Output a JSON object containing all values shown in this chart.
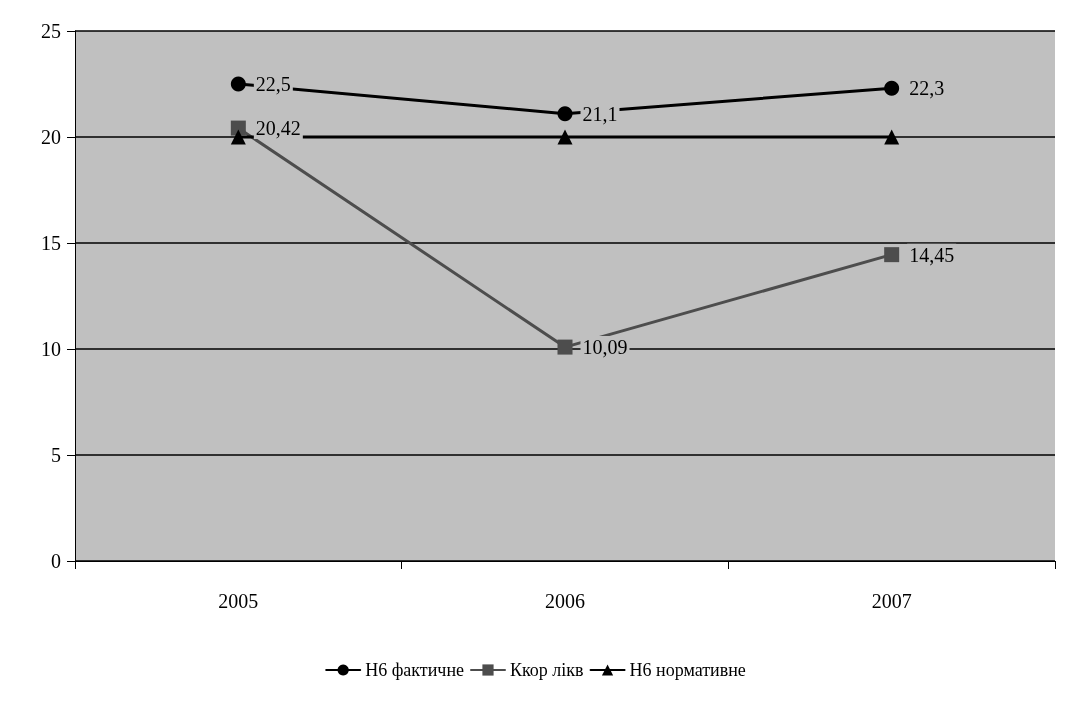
{
  "chart_data": {
    "type": "line",
    "categories": [
      "2005",
      "2006",
      "2007"
    ],
    "series": [
      {
        "name": "Н6 фактичне",
        "color": "#000000",
        "marker": "circle",
        "values": [
          22.5,
          21.1,
          22.3
        ],
        "value_labels": [
          "22,5",
          "21,1",
          "22,3"
        ]
      },
      {
        "name": "Ккор лікв",
        "color": "#4d4d4d",
        "marker": "square",
        "values": [
          20.42,
          10.09,
          14.45
        ],
        "value_labels": [
          "20,42",
          "10,09",
          "14,45"
        ]
      },
      {
        "name": "Н6 нормативне",
        "color": "#000000",
        "marker": "triangle",
        "values": [
          20,
          20,
          20
        ]
      }
    ],
    "ylim": [
      0,
      25
    ],
    "yticks": [
      0,
      5,
      10,
      15,
      20,
      25
    ],
    "grid": "y",
    "legend": "bottom",
    "line_style": "solid"
  }
}
